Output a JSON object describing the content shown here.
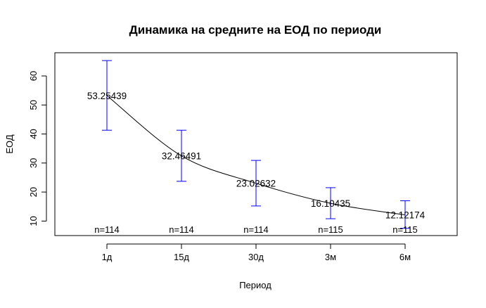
{
  "chart_data": {
    "type": "line",
    "title": "Динамика на средните на ЕОД по периоди",
    "xlabel": "Период",
    "ylabel": "ЕОД",
    "categories": [
      "1д",
      "15д",
      "30д",
      "3м",
      "6м"
    ],
    "series": [
      {
        "values": [
          53.25439,
          32.46491,
          23.02632,
          16.10435,
          12.12174
        ],
        "value_labels": [
          "53.25439",
          "32.46491",
          "23.02632",
          "16.10435",
          "12.12174"
        ],
        "error_low": [
          41.3,
          23.7,
          15.2,
          10.8,
          7.5
        ],
        "error_high": [
          65.3,
          41.3,
          30.9,
          21.5,
          17.0
        ],
        "n_labels": [
          "n=114",
          "n=114",
          "n=114",
          "n=115",
          "n=115"
        ]
      }
    ],
    "yticks": [
      10,
      20,
      30,
      40,
      50,
      60
    ],
    "ylim": [
      5,
      68
    ],
    "grid": false,
    "legend": "none",
    "colors": {
      "error_bars": "#0000ff",
      "line": "#000000",
      "frame": "#000000"
    }
  }
}
